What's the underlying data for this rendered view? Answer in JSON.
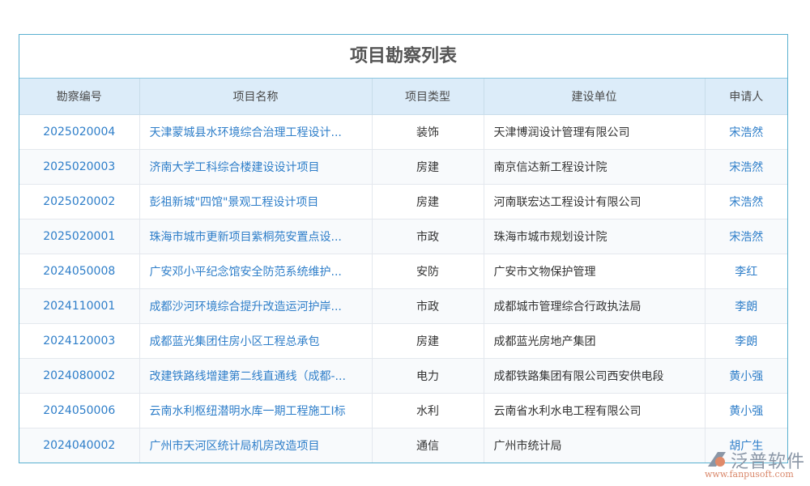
{
  "title": "项目勘察列表",
  "columns": [
    "勘察编号",
    "项目名称",
    "项目类型",
    "建设单位",
    "申请人"
  ],
  "rows": [
    [
      "2025020004",
      "天津蒙城县水环境综合治理工程设计...",
      "装饰",
      "天津博润设计管理有限公司",
      "宋浩然"
    ],
    [
      "2025020003",
      "济南大学工科综合楼建设设计项目",
      "房建",
      "南京信达新工程设计院",
      "宋浩然"
    ],
    [
      "2025020002",
      "彭祖新城\"四馆\"景观工程设计项目",
      "房建",
      "河南联宏达工程设计有限公司",
      "宋浩然"
    ],
    [
      "2025020001",
      "珠海市城市更新项目紫桐苑安置点设...",
      "市政",
      "珠海市城市规划设计院",
      "宋浩然"
    ],
    [
      "2024050008",
      "广安邓小平纪念馆安全防范系统维护...",
      "安防",
      "广安市文物保护管理",
      "李红"
    ],
    [
      "2024110001",
      "成都沙河环境综合提升改造运河护岸...",
      "市政",
      "成都城市管理综合行政执法局",
      "李朗"
    ],
    [
      "2024120003",
      "成都蓝光集团住房小区工程总承包",
      "房建",
      "成都蓝光房地产集团",
      "李朗"
    ],
    [
      "2024080002",
      "改建铁路线增建第二线直通线（成都-...",
      "电力",
      "成都铁路集团有限公司西安供电段",
      "黄小强"
    ],
    [
      "2024050006",
      "云南水利枢纽潜明水库一期工程施工I标",
      "水利",
      "云南省水利水电工程有限公司",
      "黄小强"
    ],
    [
      "2024040002",
      "广州市天河区统计局机房改造项目",
      "通信",
      "广州市统计局",
      "胡广生"
    ]
  ],
  "logo": {
    "name": "泛普软件",
    "url": "www.fanpusoft.com"
  },
  "colors": {
    "link": "#2e7ec9",
    "header_bg": "#dcecf9",
    "border": "#5ab0d0"
  }
}
